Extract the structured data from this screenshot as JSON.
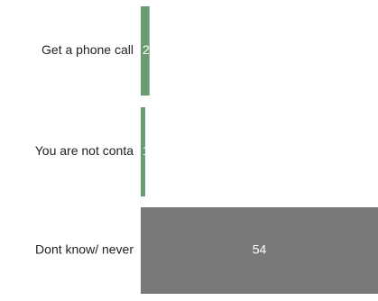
{
  "chart_data": {
    "type": "bar",
    "orientation": "horizontal",
    "categories": [
      "Get a phone call",
      "You are not conta",
      "Dont know/ never"
    ],
    "values": [
      2,
      1,
      54
    ],
    "title": "",
    "xlabel": "",
    "ylabel": "",
    "xlim": [
      0,
      54
    ],
    "grid": false,
    "legend": "none",
    "bar_colors": [
      "#6b9b72",
      "#6b9b72",
      "#787878"
    ],
    "label_color": "#ffffff",
    "category_label_color": "#222222"
  }
}
